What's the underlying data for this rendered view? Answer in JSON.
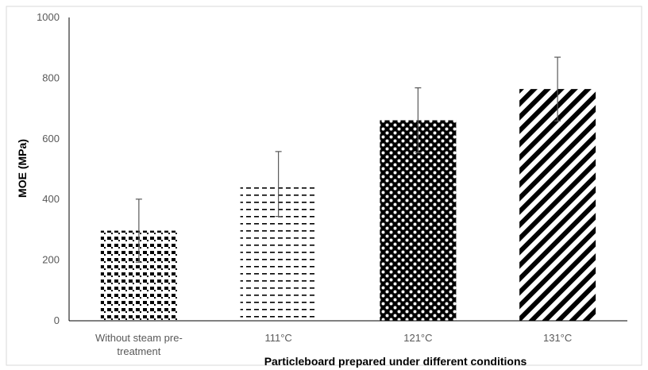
{
  "chart_data": {
    "type": "bar",
    "title": "",
    "xlabel": "Particleboard prepared under different conditions",
    "ylabel": "MOE (MPa)",
    "ylim": [
      0,
      1000
    ],
    "yticks": [
      0,
      200,
      400,
      600,
      800,
      1000
    ],
    "grid": false,
    "legend": "none",
    "categories": [
      [
        "Without steam pre-",
        "treatment"
      ],
      [
        "111°C"
      ],
      [
        "121°C"
      ],
      [
        "131°C"
      ]
    ],
    "values": [
      297,
      451,
      661,
      764
    ],
    "error": [
      104,
      107,
      107,
      105
    ],
    "patterns": [
      "dots",
      "dashes",
      "checker-dots",
      "diagonal-stripes"
    ],
    "colors": {
      "bar": "#000000",
      "axis": "#000000",
      "errorbar": "#595959",
      "frame": "#d9d9d9"
    }
  }
}
